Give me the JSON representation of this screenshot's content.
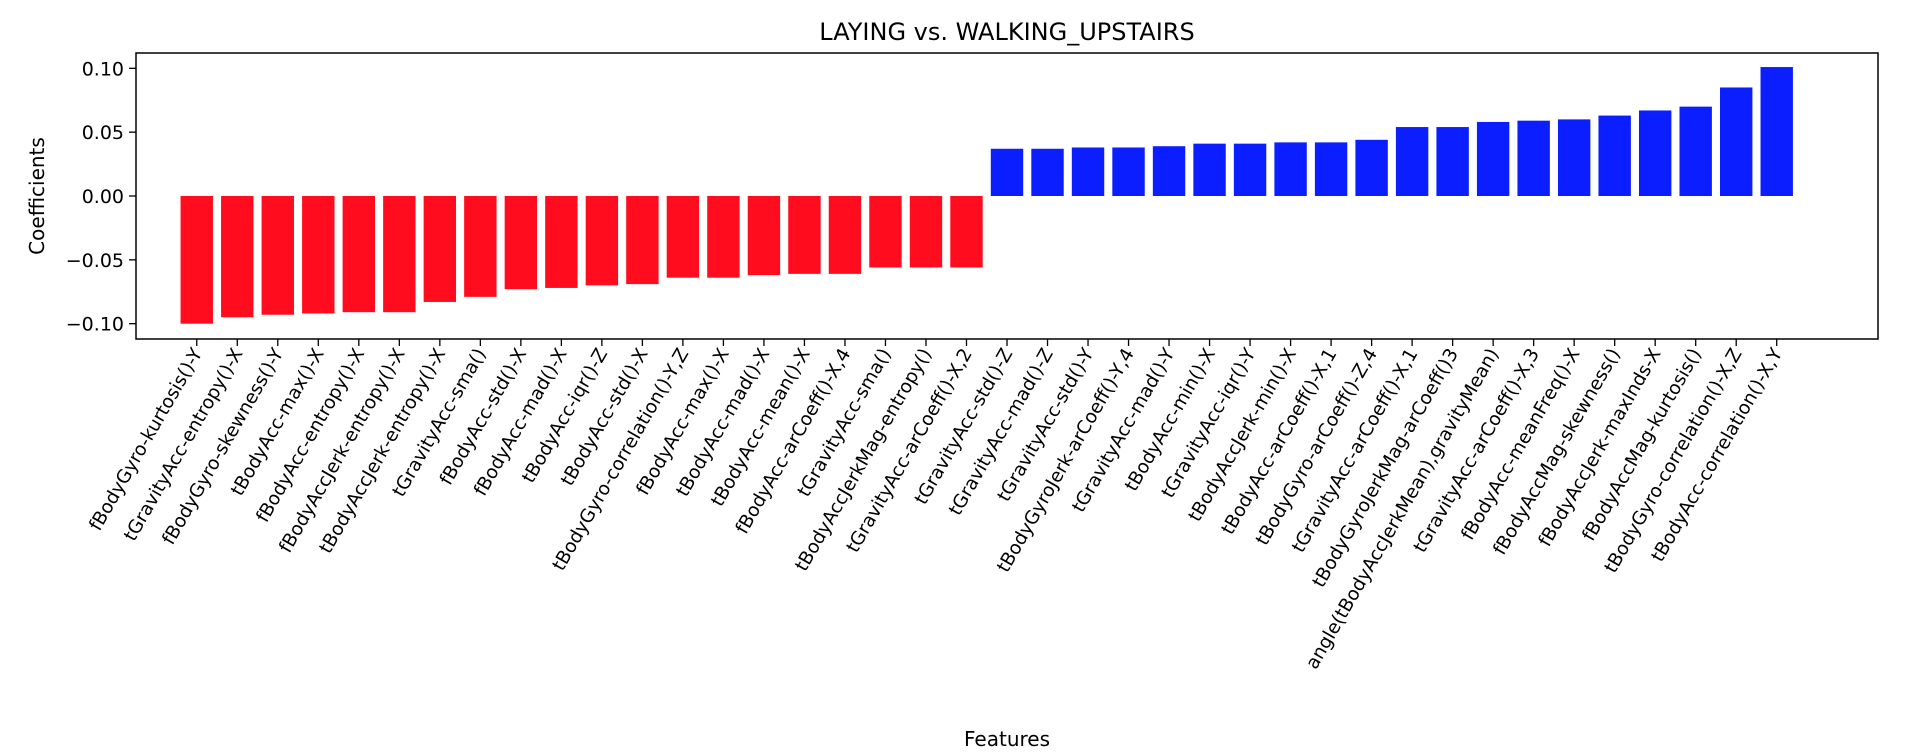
{
  "chart_data": {
    "type": "bar",
    "title": "LAYING vs. WALKING_UPSTAIRS",
    "xlabel": "Features",
    "ylabel": "Coefficients",
    "ylim": [
      -0.112,
      0.112
    ],
    "yticks": [
      -0.1,
      -0.05,
      0.0,
      0.05,
      0.1
    ],
    "ytick_labels": [
      "−0.10",
      "−0.05",
      "0.00",
      "0.05",
      "0.10"
    ],
    "grid": false,
    "colors": {
      "negative": "#ff0d1e",
      "positive": "#0b1eff"
    },
    "categories": [
      "fBodyGyro-kurtosis()-Y",
      "tGravityAcc-entropy()-X",
      "fBodyGyro-skewness()-Y",
      "tBodyAcc-max()-X",
      "fBodyAcc-entropy()-X",
      "fBodyAccJerk-entropy()-X",
      "tBodyAccJerk-entropy()-X",
      "tGravityAcc-sma()",
      "fBodyAcc-std()-X",
      "fBodyAcc-mad()-X",
      "tBodyAcc-iqr()-Z",
      "tBodyAcc-std()-X",
      "tBodyGyro-correlation()-Y,Z",
      "fBodyAcc-max()-X",
      "tBodyAcc-mad()-X",
      "tBodyAcc-mean()-X",
      "fBodyAcc-arCoeff()-X,4",
      "tGravityAcc-sma()",
      "tBodyAccJerkMag-entropy()",
      "tGravityAcc-arCoeff()-X,2",
      "tGravityAcc-std()-Z",
      "tGravityAcc-mad()-Z",
      "tGravityAcc-std()-Y",
      "tBodyGyroJerk-arCoeff()-Y,4",
      "tGravityAcc-mad()-Y",
      "tBodyAcc-min()-X",
      "tGravityAcc-iqr()-Y",
      "tBodyAccJerk-min()-X",
      "tBodyAcc-arCoeff()-X,1",
      "tBodyGyro-arCoeff()-Z,4",
      "tGravityAcc-arCoeff()-X,1",
      "tBodyGyroJerkMag-arCoeff()3",
      "angle(tBodyAccJerkMean),gravityMean)",
      "tGravityAcc-arCoeff()-X,3",
      "fBodyAcc-meanFreq()-X",
      "fBodyAccMag-skewness()",
      "fBodyAccJerk-maxInds-X",
      "fBodyAccMag-kurtosis()",
      "tBodyGyro-correlation()-X,Z",
      "tBodyAcc-correlation()-X,Y"
    ],
    "values": [
      -0.1,
      -0.095,
      -0.093,
      -0.092,
      -0.091,
      -0.091,
      -0.083,
      -0.079,
      -0.073,
      -0.072,
      -0.07,
      -0.069,
      -0.064,
      -0.064,
      -0.062,
      -0.061,
      -0.061,
      -0.056,
      -0.056,
      -0.056,
      0.037,
      0.037,
      0.038,
      0.038,
      0.039,
      0.041,
      0.041,
      0.042,
      0.042,
      0.044,
      0.054,
      0.054,
      0.058,
      0.059,
      0.06,
      0.063,
      0.067,
      0.07,
      0.085,
      0.101
    ]
  }
}
